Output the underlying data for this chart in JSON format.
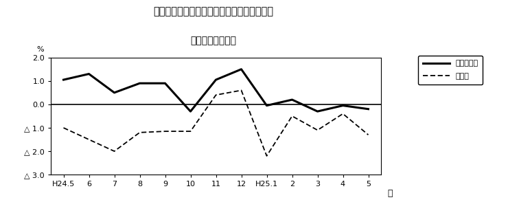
{
  "title_line1": "第３図　常用雇用指数　対前年同月比の推移",
  "title_line2": "（規横５人以上）",
  "ylabel": "%",
  "xlabel": "月",
  "x_labels": [
    "H24.5",
    "6",
    "7",
    "8",
    "9",
    "10",
    "11",
    "12",
    "H25.1",
    "2",
    "3",
    "4",
    "5"
  ],
  "series1_name": "調査産業計",
  "series1_values": [
    1.05,
    1.3,
    0.5,
    0.9,
    0.9,
    -0.3,
    1.05,
    1.5,
    -0.05,
    0.2,
    -0.3,
    -0.05,
    -0.2
  ],
  "series2_name": "製造業",
  "series2_values": [
    -1.0,
    -1.5,
    -2.0,
    -1.2,
    -1.15,
    -1.15,
    0.4,
    0.6,
    -2.2,
    -0.5,
    -1.1,
    -0.4,
    -1.3
  ],
  "ylim_min": -3.0,
  "ylim_max": 2.0,
  "yticks": [
    2.0,
    1.0,
    0.0,
    -1.0,
    -2.0,
    -3.0
  ],
  "ytick_labels": [
    "2.0",
    "1.0",
    "0.0",
    "△ 1.0",
    "△ 2.0",
    "△ 3.0"
  ],
  "background_color": "#ffffff",
  "line1_color": "#000000",
  "line2_color": "#000000",
  "zero_line_color": "#000000"
}
